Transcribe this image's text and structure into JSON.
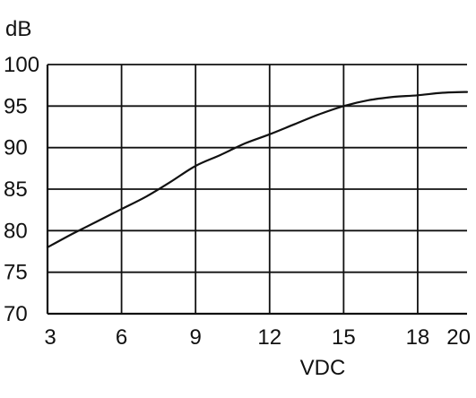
{
  "chart_data": {
    "type": "line",
    "title": "",
    "xlabel": "VDC",
    "ylabel": "dB",
    "xlim": [
      3,
      20
    ],
    "ylim": [
      70,
      100
    ],
    "grid": true,
    "x_ticks": [
      3,
      6,
      9,
      12,
      15,
      18,
      20
    ],
    "x_tick_labels": [
      "3",
      "6",
      "9",
      "12",
      "15",
      "18",
      "20"
    ],
    "y_ticks": [
      70,
      75,
      80,
      85,
      90,
      95,
      100
    ],
    "y_tick_labels": [
      "70",
      "75",
      "80",
      "85",
      "90",
      "95",
      "100"
    ],
    "series": [
      {
        "x": [
          3,
          4,
          5,
          6,
          7,
          8,
          9,
          10,
          11,
          12,
          13,
          14,
          15,
          16,
          17,
          18,
          19,
          20
        ],
        "values": [
          78,
          79.6,
          81.1,
          82.6,
          84.1,
          85.9,
          87.8,
          89.1,
          90.5,
          91.6,
          92.8,
          94,
          95,
          95.7,
          96.1,
          96.3,
          96.6,
          96.7
        ]
      }
    ],
    "colors": {
      "line": "#111111",
      "grid": "#111111"
    }
  }
}
